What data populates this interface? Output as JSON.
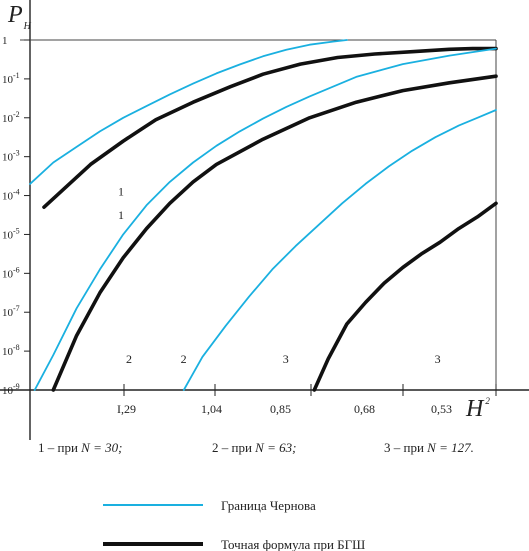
{
  "chart_data": {
    "type": "line",
    "title": "",
    "ylabel": "P",
    "ylabel_sub": "Н",
    "xlabel": "H",
    "xlabel_sup": "2",
    "y_scale": "log",
    "ylim": [
      1e-09,
      1
    ],
    "y_ticks": [
      {
        "base": "1",
        "exp": ""
      },
      {
        "base": "10",
        "exp": "-1"
      },
      {
        "base": "10",
        "exp": "-2"
      },
      {
        "base": "10",
        "exp": "-3"
      },
      {
        "base": "10",
        "exp": "-4"
      },
      {
        "base": "10",
        "exp": "-5"
      },
      {
        "base": "10",
        "exp": "-6"
      },
      {
        "base": "10",
        "exp": "-7"
      },
      {
        "base": "10",
        "exp": "-8"
      },
      {
        "base": "10",
        "exp": "-9"
      }
    ],
    "x_tick_labels": [
      "I,29",
      "1,04",
      "0,85",
      "0,68",
      "0,53"
    ],
    "grid": false,
    "legend_position": "bottom-left",
    "series": [
      {
        "name": "Граница Чернова",
        "group": "1",
        "style": "chernov",
        "color": "#1ab0e0",
        "points": [
          [
            0.0,
            -3.7
          ],
          [
            0.05,
            -3.15
          ],
          [
            0.1,
            -2.75
          ],
          [
            0.15,
            -2.35
          ],
          [
            0.2,
            -2.0
          ],
          [
            0.25,
            -1.7
          ],
          [
            0.3,
            -1.4
          ],
          [
            0.35,
            -1.12
          ],
          [
            0.4,
            -0.86
          ],
          [
            0.45,
            -0.63
          ],
          [
            0.5,
            -0.42
          ],
          [
            0.55,
            -0.25
          ],
          [
            0.6,
            -0.12
          ],
          [
            0.65,
            -0.04
          ],
          [
            0.68,
            0.0
          ]
        ]
      },
      {
        "name": "Точная формула при БГШ",
        "group": "1",
        "style": "exact",
        "color": "#111111",
        "points": [
          [
            0.03,
            -4.3
          ],
          [
            0.08,
            -3.75
          ],
          [
            0.13,
            -3.2
          ],
          [
            0.2,
            -2.6
          ],
          [
            0.27,
            -2.05
          ],
          [
            0.35,
            -1.6
          ],
          [
            0.43,
            -1.2
          ],
          [
            0.5,
            -0.88
          ],
          [
            0.58,
            -0.62
          ],
          [
            0.66,
            -0.45
          ],
          [
            0.74,
            -0.36
          ],
          [
            0.82,
            -0.3
          ],
          [
            0.9,
            -0.24
          ],
          [
            0.95,
            -0.22
          ],
          [
            1.0,
            -0.22
          ]
        ]
      },
      {
        "name": "Граница Чернова",
        "group": "2",
        "style": "chernov",
        "color": "#1ab0e0",
        "points": [
          [
            0.01,
            -9.0
          ],
          [
            0.05,
            -8.1
          ],
          [
            0.1,
            -6.9
          ],
          [
            0.15,
            -5.9
          ],
          [
            0.2,
            -5.0
          ],
          [
            0.25,
            -4.25
          ],
          [
            0.3,
            -3.65
          ],
          [
            0.35,
            -3.15
          ],
          [
            0.4,
            -2.72
          ],
          [
            0.45,
            -2.35
          ],
          [
            0.5,
            -2.02
          ],
          [
            0.55,
            -1.72
          ],
          [
            0.6,
            -1.45
          ],
          [
            0.65,
            -1.2
          ],
          [
            0.7,
            -0.95
          ],
          [
            0.8,
            -0.62
          ],
          [
            0.9,
            -0.4
          ],
          [
            1.0,
            -0.22
          ]
        ]
      },
      {
        "name": "Точная формула при БГШ",
        "group": "2",
        "style": "exact",
        "color": "#111111",
        "points": [
          [
            0.05,
            -9.0
          ],
          [
            0.1,
            -7.6
          ],
          [
            0.15,
            -6.5
          ],
          [
            0.2,
            -5.6
          ],
          [
            0.25,
            -4.85
          ],
          [
            0.3,
            -4.2
          ],
          [
            0.35,
            -3.65
          ],
          [
            0.4,
            -3.2
          ],
          [
            0.5,
            -2.55
          ],
          [
            0.6,
            -2.0
          ],
          [
            0.7,
            -1.6
          ],
          [
            0.8,
            -1.3
          ],
          [
            0.9,
            -1.1
          ],
          [
            1.0,
            -0.93
          ]
        ]
      },
      {
        "name": "Граница Чернова",
        "group": "3",
        "style": "chernov",
        "color": "#1ab0e0",
        "points": [
          [
            0.33,
            -9.0
          ],
          [
            0.37,
            -8.15
          ],
          [
            0.42,
            -7.35
          ],
          [
            0.47,
            -6.6
          ],
          [
            0.52,
            -5.9
          ],
          [
            0.57,
            -5.3
          ],
          [
            0.62,
            -4.75
          ],
          [
            0.67,
            -4.2
          ],
          [
            0.72,
            -3.7
          ],
          [
            0.77,
            -3.25
          ],
          [
            0.82,
            -2.85
          ],
          [
            0.87,
            -2.5
          ],
          [
            0.92,
            -2.2
          ],
          [
            0.96,
            -2.0
          ],
          [
            1.0,
            -1.8
          ]
        ]
      },
      {
        "name": "Точная формула при БГШ",
        "group": "3",
        "style": "exact",
        "color": "#111111",
        "points": [
          [
            0.61,
            -9.0
          ],
          [
            0.64,
            -8.2
          ],
          [
            0.68,
            -7.3
          ],
          [
            0.72,
            -6.75
          ],
          [
            0.76,
            -6.25
          ],
          [
            0.8,
            -5.85
          ],
          [
            0.84,
            -5.5
          ],
          [
            0.88,
            -5.2
          ],
          [
            0.92,
            -4.85
          ],
          [
            0.96,
            -4.55
          ],
          [
            1.0,
            -4.2
          ]
        ]
      }
    ],
    "curve_labels": [
      {
        "text": "1",
        "x": 0.0,
        "y": -3.9
      },
      {
        "text": "1",
        "x": 0.0,
        "y": -4.5
      },
      {
        "text": "2",
        "x": 0.0,
        "y": -8.2
      },
      {
        "text": "2",
        "x": 0.1,
        "y": -8.2
      },
      {
        "text": "3",
        "x": 0.3,
        "y": -8.2
      },
      {
        "text": "3",
        "x": 0.6,
        "y": -8.2
      }
    ],
    "captions": [
      {
        "prefix": "1 – при ",
        "var": "N",
        "value": " = 30;"
      },
      {
        "prefix": "2 – при ",
        "var": "N",
        "value": " = 63;"
      },
      {
        "prefix": "3 – при ",
        "var": "N",
        "value": " = 127."
      }
    ]
  },
  "legend": [
    {
      "label": "Граница Чернова",
      "color": "#1ab0e0"
    },
    {
      "label": "Точная формула при БГШ",
      "color": "#111111"
    }
  ]
}
